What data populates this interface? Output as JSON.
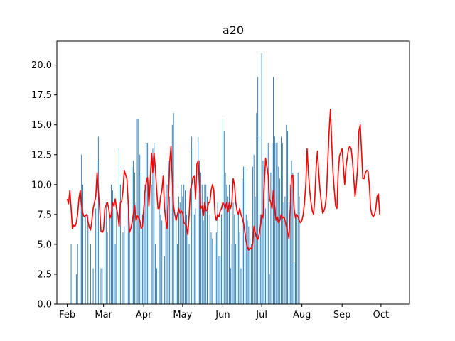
{
  "chart_data": {
    "type": "bar+line",
    "title": "a20",
    "xlabel": "",
    "ylabel": "",
    "x_start_date": "2023-02-01",
    "x_range_dates": [
      "2023-01-24",
      "2023-10-23"
    ],
    "ylim": [
      0,
      22
    ],
    "yticks": [
      "0.0",
      "2.5",
      "5.0",
      "7.5",
      "10.0",
      "12.5",
      "15.0",
      "17.5",
      "20.0"
    ],
    "xticks": [
      {
        "date": "2023-02-01",
        "label": "Feb"
      },
      {
        "date": "2023-03-01",
        "label": "Mar"
      },
      {
        "date": "2023-04-01",
        "label": "Apr"
      },
      {
        "date": "2023-05-01",
        "label": "May"
      },
      {
        "date": "2023-06-01",
        "label": "Jun"
      },
      {
        "date": "2023-07-01",
        "label": "Jul"
      },
      {
        "date": "2023-08-01",
        "label": "Aug"
      },
      {
        "date": "2023-09-01",
        "label": "Sep"
      },
      {
        "date": "2023-10-01",
        "label": "Oct"
      }
    ],
    "bar_color": "#1f77b4",
    "line_color": "#ff0000",
    "bars": [
      [
        3,
        5
      ],
      [
        7,
        2.5
      ],
      [
        8,
        5
      ],
      [
        10,
        9.5
      ],
      [
        11,
        12.5
      ],
      [
        12,
        10
      ],
      [
        14,
        7.5
      ],
      [
        16,
        7.5
      ],
      [
        18,
        5
      ],
      [
        20,
        3
      ],
      [
        22,
        8
      ],
      [
        23,
        12
      ],
      [
        24,
        14
      ],
      [
        26,
        3
      ],
      [
        27,
        3
      ],
      [
        29,
        8
      ],
      [
        30,
        8.5
      ],
      [
        31,
        6
      ],
      [
        33,
        7.5
      ],
      [
        34,
        10
      ],
      [
        35,
        9.5
      ],
      [
        36,
        8
      ],
      [
        37,
        5
      ],
      [
        38,
        8
      ],
      [
        40,
        13
      ],
      [
        41,
        10
      ],
      [
        43,
        6
      ],
      [
        44,
        6.5
      ],
      [
        46,
        8.5
      ],
      [
        47,
        8
      ],
      [
        48,
        6.5
      ],
      [
        50,
        11.5
      ],
      [
        51,
        12
      ],
      [
        52,
        11
      ],
      [
        53,
        8.5
      ],
      [
        54,
        15.5
      ],
      [
        55,
        15.5
      ],
      [
        56,
        12.5
      ],
      [
        57,
        11
      ],
      [
        58,
        7.5
      ],
      [
        59,
        8
      ],
      [
        60,
        10
      ],
      [
        61,
        13.5
      ],
      [
        62,
        13.5
      ],
      [
        63,
        9
      ],
      [
        65,
        10
      ],
      [
        66,
        13
      ],
      [
        67,
        13.5
      ],
      [
        68,
        5
      ],
      [
        69,
        3
      ],
      [
        71,
        8
      ],
      [
        72,
        7.5
      ],
      [
        73,
        7
      ],
      [
        75,
        4
      ],
      [
        76,
        9
      ],
      [
        77,
        10
      ],
      [
        78,
        12
      ],
      [
        79,
        9
      ],
      [
        81,
        15
      ],
      [
        82,
        16
      ],
      [
        84,
        7.5
      ],
      [
        85,
        5
      ],
      [
        86,
        9
      ],
      [
        87,
        8.5
      ],
      [
        88,
        10
      ],
      [
        89,
        9
      ],
      [
        90,
        10
      ],
      [
        91,
        9.5
      ],
      [
        92,
        7.5
      ],
      [
        93,
        6
      ],
      [
        94,
        5
      ],
      [
        96,
        14
      ],
      [
        97,
        13
      ],
      [
        98,
        7.5
      ],
      [
        99,
        8
      ],
      [
        101,
        14
      ],
      [
        102,
        12
      ],
      [
        103,
        11
      ],
      [
        104,
        10
      ],
      [
        105,
        7
      ],
      [
        106,
        10
      ],
      [
        107,
        10
      ],
      [
        108,
        9
      ],
      [
        110,
        7.5
      ],
      [
        111,
        6
      ],
      [
        112,
        5.5
      ],
      [
        114,
        5
      ],
      [
        115,
        6
      ],
      [
        116,
        8.5
      ],
      [
        117,
        4
      ],
      [
        118,
        4
      ],
      [
        119,
        7.5
      ],
      [
        120,
        15.5
      ],
      [
        121,
        14.5
      ],
      [
        122,
        11
      ],
      [
        123,
        10
      ],
      [
        124,
        9
      ],
      [
        125,
        10
      ],
      [
        126,
        3
      ],
      [
        127,
        5
      ],
      [
        128,
        8.5
      ],
      [
        129,
        7.5
      ],
      [
        130,
        5
      ],
      [
        131,
        8.5
      ],
      [
        132,
        7.5
      ],
      [
        133,
        6
      ],
      [
        134,
        3
      ],
      [
        135,
        10.5
      ],
      [
        136,
        11.5
      ],
      [
        137,
        11.5
      ],
      [
        138,
        7.5
      ],
      [
        139,
        7
      ],
      [
        140,
        6.5
      ],
      [
        141,
        5.5
      ],
      [
        142,
        5
      ],
      [
        143,
        11.5
      ],
      [
        144,
        12.5
      ],
      [
        145,
        9
      ],
      [
        146,
        16
      ],
      [
        147,
        19
      ],
      [
        148,
        14
      ],
      [
        149,
        7.5
      ],
      [
        150,
        21
      ],
      [
        151,
        12
      ],
      [
        152,
        11.5
      ],
      [
        153,
        8
      ],
      [
        154,
        7.5
      ],
      [
        155,
        13.5
      ],
      [
        156,
        2.5
      ],
      [
        157,
        11
      ],
      [
        158,
        13.5
      ],
      [
        159,
        19
      ],
      [
        160,
        14
      ],
      [
        161,
        13.5
      ],
      [
        162,
        13.5
      ],
      [
        163,
        11.5
      ],
      [
        164,
        10.5
      ],
      [
        165,
        14
      ],
      [
        166,
        13.5
      ],
      [
        167,
        8.5
      ],
      [
        168,
        9
      ],
      [
        169,
        15
      ],
      [
        170,
        14.5
      ],
      [
        171,
        8.5
      ],
      [
        172,
        10
      ],
      [
        173,
        12
      ],
      [
        174,
        11
      ],
      [
        175,
        3.5
      ],
      [
        176,
        7.5
      ],
      [
        177,
        7.5
      ],
      [
        178,
        11
      ],
      [
        179,
        9
      ]
    ],
    "line": [
      [
        0,
        8.8
      ],
      [
        1,
        8.4
      ],
      [
        2,
        9.5
      ],
      [
        3,
        8.0
      ],
      [
        4,
        6.3
      ],
      [
        5,
        6.6
      ],
      [
        6,
        6.5
      ],
      [
        7,
        6.8
      ],
      [
        8,
        7.5
      ],
      [
        9,
        8.8
      ],
      [
        10,
        9.5
      ],
      [
        11,
        8.3
      ],
      [
        12,
        7.6
      ],
      [
        13,
        7.3
      ],
      [
        14,
        7.4
      ],
      [
        15,
        7.5
      ],
      [
        16,
        6.9
      ],
      [
        17,
        6.4
      ],
      [
        18,
        6.2
      ],
      [
        19,
        7.0
      ],
      [
        20,
        8.0
      ],
      [
        21,
        8.5
      ],
      [
        22,
        9.0
      ],
      [
        23,
        11.0
      ],
      [
        24,
        9.5
      ],
      [
        25,
        8.0
      ],
      [
        26,
        6.1
      ],
      [
        27,
        6.0
      ],
      [
        28,
        6.2
      ],
      [
        29,
        8.0
      ],
      [
        30,
        8.3
      ],
      [
        31,
        8.5
      ],
      [
        32,
        8.0
      ],
      [
        33,
        7.2
      ],
      [
        34,
        7.5
      ],
      [
        35,
        8.5
      ],
      [
        36,
        8.2
      ],
      [
        37,
        8.8
      ],
      [
        38,
        8.0
      ],
      [
        39,
        7.5
      ],
      [
        40,
        6.5
      ],
      [
        41,
        8.5
      ],
      [
        42,
        8.6
      ],
      [
        43,
        9.5
      ],
      [
        44,
        11.2
      ],
      [
        45,
        10.8
      ],
      [
        46,
        10.5
      ],
      [
        47,
        8.5
      ],
      [
        48,
        6.0
      ],
      [
        49,
        6.3
      ],
      [
        50,
        6.8
      ],
      [
        51,
        7.5
      ],
      [
        52,
        8.3
      ],
      [
        53,
        7.0
      ],
      [
        54,
        7.4
      ],
      [
        55,
        7.2
      ],
      [
        56,
        7.0
      ],
      [
        57,
        6.3
      ],
      [
        58,
        6.5
      ],
      [
        59,
        8.0
      ],
      [
        60,
        9.5
      ],
      [
        61,
        10.2
      ],
      [
        62,
        10.6
      ],
      [
        63,
        8.2
      ],
      [
        64,
        10.3
      ],
      [
        65,
        12.6
      ],
      [
        66,
        11.0
      ],
      [
        67,
        12.6
      ],
      [
        68,
        11.3
      ],
      [
        69,
        9.5
      ],
      [
        70,
        8.0
      ],
      [
        71,
        8.0
      ],
      [
        72,
        9.0
      ],
      [
        73,
        9.5
      ],
      [
        74,
        10.7
      ],
      [
        75,
        8.0
      ],
      [
        76,
        7.0
      ],
      [
        77,
        6.3
      ],
      [
        78,
        8.5
      ],
      [
        79,
        11.8
      ],
      [
        80,
        13.2
      ],
      [
        81,
        10.5
      ],
      [
        82,
        8.2
      ],
      [
        83,
        7.5
      ],
      [
        84,
        7.0
      ],
      [
        85,
        7.5
      ],
      [
        86,
        8.0
      ],
      [
        87,
        7.6
      ],
      [
        88,
        7.8
      ],
      [
        89,
        7.6
      ],
      [
        90,
        6.8
      ],
      [
        91,
        6.7
      ],
      [
        92,
        6.5
      ],
      [
        93,
        5.8
      ],
      [
        94,
        7.4
      ],
      [
        95,
        9.6
      ],
      [
        96,
        10.0
      ],
      [
        97,
        10.6
      ],
      [
        98,
        10.7
      ],
      [
        99,
        8.8
      ],
      [
        100,
        11.7
      ],
      [
        101,
        12.0
      ],
      [
        102,
        10.0
      ],
      [
        103,
        8.0
      ],
      [
        104,
        8.2
      ],
      [
        105,
        7.4
      ],
      [
        106,
        8.5
      ],
      [
        107,
        7.8
      ],
      [
        108,
        7.9
      ],
      [
        109,
        8.5
      ],
      [
        110,
        8.5
      ],
      [
        111,
        9.5
      ],
      [
        112,
        10.0
      ],
      [
        113,
        9.6
      ],
      [
        114,
        7.5
      ],
      [
        115,
        7.0
      ],
      [
        116,
        7.5
      ],
      [
        117,
        7.3
      ],
      [
        118,
        7.8
      ],
      [
        119,
        8.0
      ],
      [
        120,
        8.5
      ],
      [
        121,
        8.3
      ],
      [
        122,
        8.0
      ],
      [
        123,
        8.5
      ],
      [
        124,
        7.7
      ],
      [
        125,
        8.5
      ],
      [
        126,
        8.0
      ],
      [
        127,
        8.5
      ],
      [
        128,
        10.5
      ],
      [
        129,
        10.0
      ],
      [
        130,
        8.5
      ],
      [
        131,
        7.8
      ],
      [
        132,
        7.5
      ],
      [
        133,
        8.0
      ],
      [
        134,
        7.5
      ],
      [
        135,
        7.2
      ],
      [
        136,
        6.8
      ],
      [
        137,
        6.0
      ],
      [
        138,
        5.2
      ],
      [
        139,
        4.8
      ],
      [
        140,
        4.5
      ],
      [
        141,
        4.7
      ],
      [
        142,
        4.6
      ],
      [
        143,
        5.0
      ],
      [
        144,
        6.5
      ],
      [
        145,
        6.0
      ],
      [
        146,
        5.6
      ],
      [
        147,
        5.4
      ],
      [
        148,
        5.8
      ],
      [
        149,
        6.5
      ],
      [
        150,
        7.5
      ],
      [
        151,
        7.2
      ],
      [
        152,
        10.0
      ],
      [
        153,
        12.2
      ],
      [
        154,
        11.5
      ],
      [
        155,
        10.8
      ],
      [
        156,
        8.8
      ],
      [
        157,
        8.5
      ],
      [
        158,
        8.0
      ],
      [
        159,
        9.5
      ],
      [
        160,
        8.2
      ],
      [
        161,
        7.0
      ],
      [
        162,
        7.3
      ],
      [
        163,
        6.8
      ],
      [
        164,
        7.0
      ],
      [
        165,
        7.5
      ],
      [
        166,
        7.2
      ],
      [
        167,
        7.3
      ],
      [
        168,
        7.0
      ],
      [
        169,
        6.5
      ],
      [
        170,
        6.0
      ],
      [
        171,
        5.5
      ],
      [
        172,
        8.0
      ],
      [
        173,
        10.6
      ],
      [
        174,
        10.8
      ],
      [
        175,
        8.0
      ],
      [
        176,
        7.2
      ],
      [
        177,
        7.5
      ],
      [
        178,
        7.3
      ],
      [
        179,
        7.0
      ],
      [
        180,
        6.8
      ],
      [
        181,
        7.0
      ],
      [
        182,
        7.5
      ],
      [
        183,
        8.5
      ],
      [
        184,
        10.0
      ],
      [
        185,
        13.0
      ],
      [
        186,
        11.0
      ],
      [
        187,
        9.5
      ],
      [
        188,
        8.5
      ],
      [
        189,
        7.8
      ],
      [
        190,
        7.5
      ],
      [
        191,
        9.0
      ],
      [
        192,
        11.5
      ],
      [
        193,
        12.8
      ],
      [
        194,
        11.0
      ],
      [
        195,
        9.5
      ],
      [
        196,
        8.5
      ],
      [
        197,
        7.6
      ],
      [
        198,
        7.8
      ],
      [
        199,
        8.2
      ],
      [
        200,
        9.2
      ],
      [
        201,
        12.0
      ],
      [
        202,
        14.5
      ],
      [
        203,
        16.3
      ],
      [
        204,
        13.5
      ],
      [
        205,
        11.0
      ],
      [
        206,
        9.5
      ],
      [
        207,
        8.2
      ],
      [
        208,
        8.0
      ],
      [
        209,
        11.0
      ],
      [
        210,
        12.4
      ],
      [
        211,
        12.7
      ],
      [
        212,
        13.0
      ],
      [
        213,
        11.5
      ],
      [
        214,
        10.0
      ],
      [
        215,
        11.5
      ],
      [
        216,
        12.3
      ],
      [
        217,
        13.0
      ],
      [
        218,
        13.2
      ],
      [
        219,
        13.0
      ],
      [
        220,
        12.0
      ],
      [
        221,
        10.5
      ],
      [
        222,
        9.0
      ],
      [
        223,
        10.0
      ],
      [
        224,
        11.5
      ],
      [
        225,
        14.5
      ],
      [
        226,
        15.0
      ],
      [
        227,
        12.8
      ],
      [
        228,
        10.5
      ],
      [
        229,
        10.5
      ],
      [
        230,
        11.0
      ],
      [
        231,
        11.2
      ],
      [
        232,
        11.1
      ],
      [
        233,
        10.0
      ],
      [
        234,
        8.0
      ],
      [
        235,
        7.5
      ],
      [
        236,
        7.3
      ],
      [
        237,
        7.5
      ],
      [
        238,
        8.0
      ],
      [
        239,
        9.0
      ],
      [
        240,
        9.2
      ],
      [
        241,
        7.5
      ]
    ]
  }
}
